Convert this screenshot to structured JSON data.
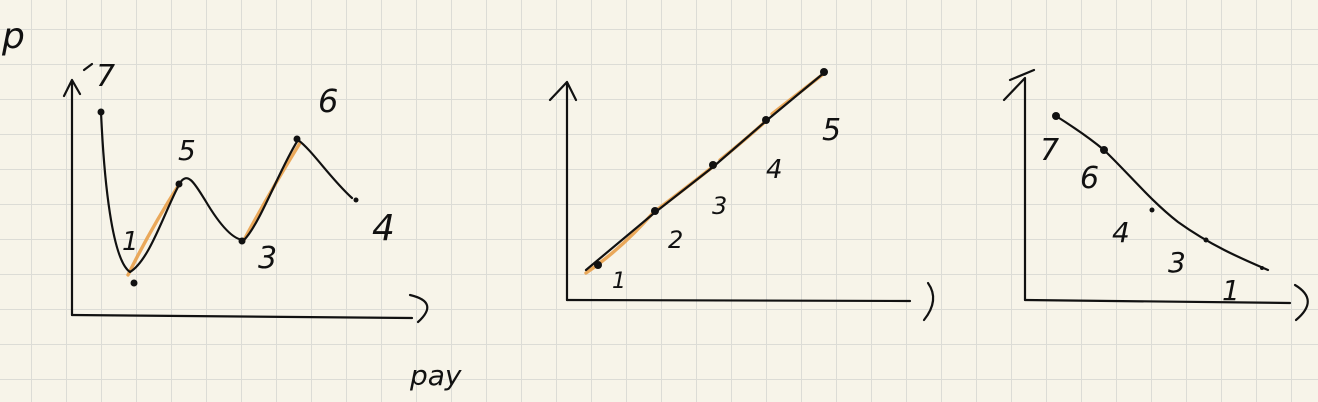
{
  "sketch": {
    "page_label": "p",
    "panel1": {
      "x_axis_label": "pay",
      "labels": [
        "7",
        "5",
        "6",
        "1",
        "3",
        "4"
      ]
    },
    "panel2": {
      "labels": [
        "1",
        "2",
        "3",
        "4",
        "5"
      ]
    },
    "panel3": {
      "labels": [
        "7",
        "6",
        "4",
        "3",
        "1"
      ]
    }
  },
  "colors": {
    "ink": "#111111",
    "highlight": "#e8a04a",
    "paper": "#f7f4e9",
    "grid": "#dcdcd6"
  }
}
